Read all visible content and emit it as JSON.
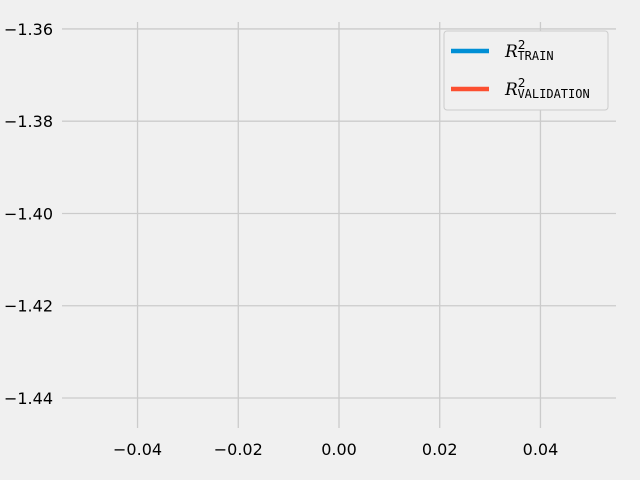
{
  "chart_data": {
    "type": "line",
    "title": "",
    "xlabel": "",
    "ylabel": "",
    "xlim": [
      -0.055,
      0.055
    ],
    "ylim": [
      -1.4465,
      -1.3585
    ],
    "x_ticks": [
      -0.04,
      -0.02,
      0.0,
      0.02,
      0.04
    ],
    "x_tick_labels": [
      "−0.04",
      "−0.02",
      "0.00",
      "0.02",
      "0.04"
    ],
    "y_ticks": [
      -1.36,
      -1.38,
      -1.4,
      -1.42,
      -1.44
    ],
    "y_tick_labels": [
      "−1.36",
      "−1.38",
      "−1.40",
      "−1.42",
      "−1.44"
    ],
    "grid": true,
    "legend_position": "top-right",
    "series": [
      {
        "name": "R²_TRAIN",
        "label_main": "R",
        "label_sup": "2",
        "label_sub": "TRAIN",
        "color": "#008fd5",
        "x": [],
        "y": []
      },
      {
        "name": "R²_VALIDATION",
        "label_main": "R",
        "label_sup": "2",
        "label_sub": "VALIDATION",
        "color": "#fc4f30",
        "x": [],
        "y": []
      }
    ]
  },
  "colors": {
    "background": "#f0f0f0",
    "grid": "#cbcbcb"
  }
}
